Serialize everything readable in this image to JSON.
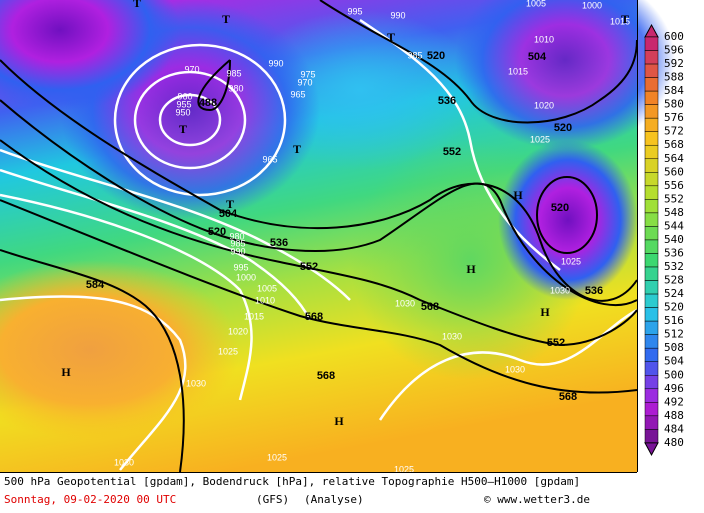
{
  "map": {
    "geopotential_labels": [
      "488",
      "504",
      "520",
      "536",
      "552",
      "568",
      "584",
      "520",
      "536",
      "552",
      "504",
      "520",
      "520",
      "536",
      "552",
      "568",
      "568",
      "568"
    ],
    "pressure_labels": [
      "995",
      "990",
      "985",
      "970",
      "985",
      "990",
      "975",
      "970",
      "980",
      "965",
      "960",
      "955",
      "950",
      "965",
      "1005",
      "1000",
      "1010",
      "1015",
      "1020",
      "1025",
      "1025",
      "1030",
      "1030",
      "1030",
      "1030",
      "980",
      "985",
      "990",
      "995",
      "1000",
      "1005",
      "1010",
      "1015",
      "1020",
      "1025",
      "1030",
      "1030",
      "1025",
      "1025",
      "1015"
    ],
    "pressure_centers": [
      "T",
      "T",
      "T",
      "T",
      "T",
      "T",
      "T",
      "H",
      "H",
      "H",
      "H",
      "H"
    ]
  },
  "colorbar": {
    "ticks": [
      600,
      596,
      592,
      588,
      584,
      580,
      576,
      572,
      568,
      564,
      560,
      556,
      552,
      548,
      544,
      540,
      536,
      532,
      528,
      524,
      520,
      516,
      512,
      508,
      504,
      500,
      496,
      492,
      488,
      484,
      480
    ]
  },
  "footer": {
    "line1": "500 hPa Geopotential [gpdam], Bodendruck [hPa], relative Topographie H500–H1000 [gpdam]",
    "date": "Sonntag, 09-02-2020  00 UTC",
    "model": "(GFS)",
    "run": "(Analyse)",
    "credit": "© www.wetter3.de"
  }
}
